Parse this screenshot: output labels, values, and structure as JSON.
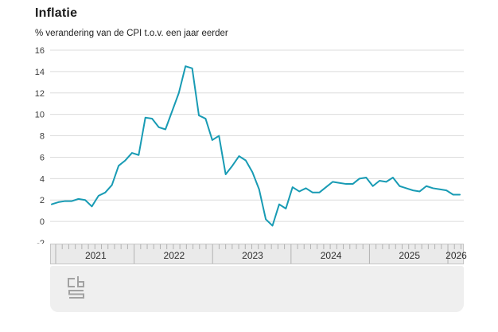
{
  "header": {
    "title": "Inflatie",
    "subtitle": "% verandering van de CPI t.o.v. een jaar eerder"
  },
  "colors": {
    "line": "#189bb4",
    "gridline": "#dcdcdc",
    "axis_text": "#3c3c3c",
    "timeline_bg": "#eaeaea",
    "timeline_border": "#c6c6c6",
    "timeline_tick": "#b2b2b2",
    "footer_bg": "#efefef",
    "logo": "#a2a2a2"
  },
  "chart_data": {
    "type": "line",
    "title": "Inflatie",
    "subtitle": "% verandering van de CPI t.o.v. een jaar eerder",
    "unit": "%",
    "ylim": [
      -2,
      16
    ],
    "yticks": [
      16,
      14,
      12,
      10,
      8,
      6,
      4,
      2,
      0,
      -2
    ],
    "grid": "horizontal",
    "legend": "none",
    "x_axis_years": [
      "2021",
      "2022",
      "2023",
      "2024",
      "2025",
      "2026"
    ],
    "x": [
      "2021-01",
      "2021-02",
      "2021-03",
      "2021-04",
      "2021-05",
      "2021-06",
      "2021-07",
      "2021-08",
      "2021-09",
      "2021-10",
      "2021-11",
      "2021-12",
      "2022-01",
      "2022-02",
      "2022-03",
      "2022-04",
      "2022-05",
      "2022-06",
      "2022-07",
      "2022-08",
      "2022-09",
      "2022-10",
      "2022-11",
      "2022-12",
      "2023-01",
      "2023-02",
      "2023-03",
      "2023-04",
      "2023-05",
      "2023-06",
      "2023-07",
      "2023-08",
      "2023-09",
      "2023-10",
      "2023-11",
      "2023-12",
      "2024-01",
      "2024-02",
      "2024-03",
      "2024-04",
      "2024-05",
      "2024-06",
      "2024-07",
      "2024-08",
      "2024-09",
      "2024-10",
      "2024-11",
      "2024-12",
      "2025-01",
      "2025-02",
      "2025-03",
      "2025-04",
      "2025-05",
      "2025-06",
      "2025-07",
      "2025-08",
      "2025-09",
      "2025-10",
      "2025-11",
      "2025-12",
      "2026-01",
      "2026-02"
    ],
    "series": [
      {
        "name": "Inflatie (CPI, % verandering t.o.v. een jaar eerder)",
        "values": [
          1.6,
          1.8,
          1.9,
          1.9,
          2.1,
          2.0,
          1.4,
          2.4,
          2.7,
          3.4,
          5.2,
          5.7,
          6.4,
          6.2,
          9.7,
          9.6,
          8.8,
          8.6,
          10.3,
          12.0,
          14.5,
          14.3,
          9.9,
          9.6,
          7.6,
          8.0,
          4.4,
          5.2,
          6.1,
          5.7,
          4.6,
          3.0,
          0.2,
          -0.4,
          1.6,
          1.2,
          3.2,
          2.8,
          3.1,
          2.7,
          2.7,
          3.2,
          3.7,
          3.6,
          3.5,
          3.5,
          4.0,
          4.1,
          3.3,
          3.8,
          3.7,
          4.1,
          3.3,
          3.1,
          2.9,
          2.8,
          3.3,
          3.1,
          3.0,
          2.9,
          2.5,
          2.5
        ]
      }
    ]
  },
  "footer": {
    "logo_name": "cbs-logo"
  }
}
